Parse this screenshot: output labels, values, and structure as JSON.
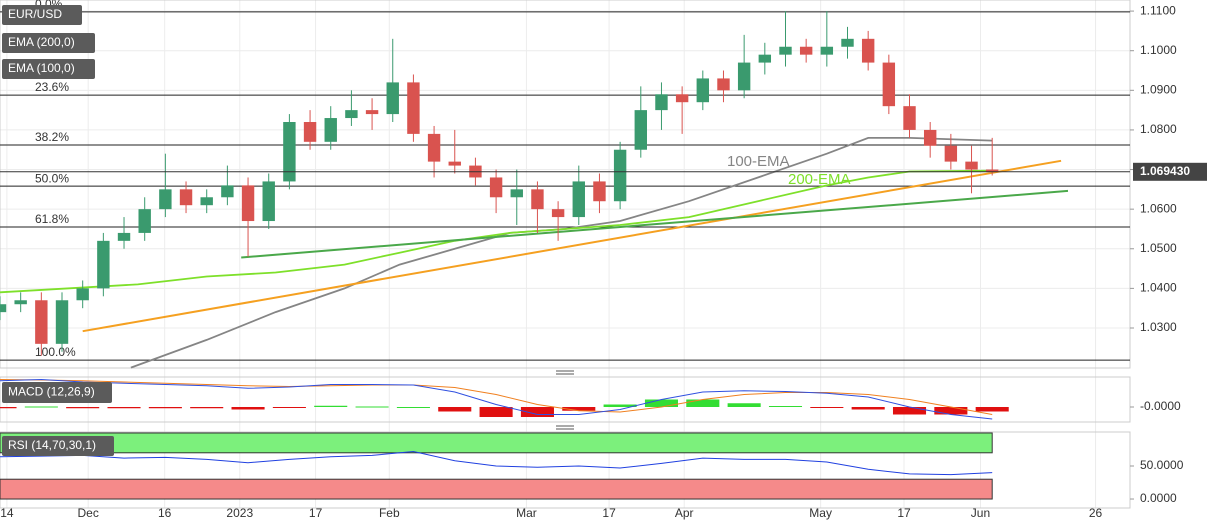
{
  "chart_data": [
    {
      "type": "candlestick",
      "legend": [
        "EUR/USD",
        "EMA (200,0)",
        "EMA (100,0)"
      ],
      "x": [
        0,
        3,
        6,
        9,
        12,
        15,
        18,
        21,
        24,
        27,
        30,
        33,
        36,
        39,
        42,
        45,
        48,
        51,
        54,
        57,
        60,
        63,
        66,
        69,
        72,
        75,
        78,
        81,
        84,
        87,
        90,
        93,
        96,
        99,
        102,
        105,
        108,
        111,
        114,
        117,
        120,
        123,
        126,
        129,
        132,
        135,
        138,
        141,
        144
      ],
      "open": [
        1.034,
        1.036,
        1.037,
        1.026,
        1.037,
        1.04,
        1.052,
        1.054,
        1.06,
        1.065,
        1.061,
        1.063,
        1.066,
        1.057,
        1.067,
        1.082,
        1.077,
        1.083,
        1.085,
        1.084,
        1.092,
        1.079,
        1.072,
        1.071,
        1.068,
        1.063,
        1.065,
        1.06,
        1.058,
        1.067,
        1.062,
        1.075,
        1.085,
        1.089,
        1.087,
        1.093,
        1.09,
        1.097,
        1.099,
        1.101,
        1.099,
        1.101,
        1.103,
        1.097,
        1.086,
        1.08,
        1.076,
        1.072,
        1.07
      ],
      "high": [
        1.038,
        1.039,
        1.039,
        1.039,
        1.042,
        1.054,
        1.058,
        1.063,
        1.074,
        1.067,
        1.065,
        1.071,
        1.068,
        1.069,
        1.084,
        1.085,
        1.086,
        1.09,
        1.088,
        1.103,
        1.094,
        1.081,
        1.08,
        1.073,
        1.07,
        1.07,
        1.067,
        1.062,
        1.071,
        1.069,
        1.077,
        1.091,
        1.092,
        1.091,
        1.095,
        1.095,
        1.104,
        1.102,
        1.11,
        1.103,
        1.11,
        1.106,
        1.105,
        1.099,
        1.089,
        1.082,
        1.079,
        1.076,
        1.078
      ],
      "low": [
        1.032,
        1.034,
        1.023,
        1.024,
        1.035,
        1.038,
        1.05,
        1.052,
        1.058,
        1.059,
        1.059,
        1.061,
        1.048,
        1.055,
        1.065,
        1.075,
        1.075,
        1.081,
        1.08,
        1.082,
        1.077,
        1.068,
        1.069,
        1.066,
        1.059,
        1.056,
        1.054,
        1.052,
        1.056,
        1.059,
        1.06,
        1.073,
        1.08,
        1.079,
        1.085,
        1.087,
        1.088,
        1.094,
        1.096,
        1.097,
        1.096,
        1.098,
        1.095,
        1.084,
        1.078,
        1.073,
        1.07,
        1.064,
        1.0685
      ],
      "close": [
        1.036,
        1.037,
        1.026,
        1.037,
        1.04,
        1.052,
        1.054,
        1.06,
        1.065,
        1.061,
        1.063,
        1.066,
        1.057,
        1.067,
        1.082,
        1.077,
        1.083,
        1.085,
        1.084,
        1.092,
        1.079,
        1.072,
        1.071,
        1.068,
        1.063,
        1.065,
        1.06,
        1.058,
        1.067,
        1.062,
        1.075,
        1.085,
        1.089,
        1.087,
        1.093,
        1.09,
        1.097,
        1.099,
        1.101,
        1.099,
        1.101,
        1.103,
        1.097,
        1.086,
        1.08,
        1.076,
        1.072,
        1.07,
        1.0694
      ],
      "up_color": "#3a9a6e",
      "down_color": "#d9534f",
      "series": [
        {
          "name": "100-EMA",
          "color": "#858585",
          "x": [
            19,
            30,
            40,
            50,
            58,
            66,
            74,
            82,
            90,
            100,
            110,
            120,
            126,
            132,
            144
          ],
          "values": [
            1.02,
            1.027,
            1.034,
            1.04,
            1.046,
            1.05,
            1.054,
            1.055,
            1.057,
            1.062,
            1.068,
            1.074,
            1.078,
            1.078,
            1.0773
          ]
        },
        {
          "name": "200-EMA",
          "color": "#7ee02a",
          "x": [
            0,
            20,
            30,
            40,
            50,
            58,
            66,
            74,
            82,
            90,
            100,
            110,
            120,
            126,
            132,
            144
          ],
          "values": [
            1.039,
            1.041,
            1.043,
            1.044,
            1.046,
            1.049,
            1.052,
            1.054,
            1.055,
            1.056,
            1.058,
            1.062,
            1.066,
            1.068,
            1.0695,
            1.0697
          ]
        }
      ],
      "trendlines": [
        {
          "color": "#f5a020",
          "x": [
            12,
            154
          ],
          "values": [
            1.0292,
            1.0722
          ]
        },
        {
          "color": "#4aa84a",
          "x": [
            35,
            155
          ],
          "values": [
            1.0478,
            1.0646
          ]
        }
      ],
      "fib_levels": [
        {
          "value": 1.1098,
          "label": "0.0%"
        },
        {
          "value": 1.0888,
          "label": "23.6%"
        },
        {
          "value": 1.0762,
          "label": "38.2%"
        },
        {
          "value": 1.0658,
          "label": "50.0%"
        },
        {
          "value": 1.0555,
          "label": "61.8%"
        },
        {
          "value": 1.0219,
          "label": "100.0%"
        }
      ],
      "last_price": {
        "value": 1.06943,
        "label": "1.069430"
      },
      "xlim": [
        0,
        164
      ],
      "ylim": [
        1.0199,
        1.1128
      ],
      "yticks": [
        {
          "value": 1.11,
          "label": "1.1100"
        },
        {
          "value": 1.1,
          "label": "1.1000"
        },
        {
          "value": 1.09,
          "label": "1.0900"
        },
        {
          "value": 1.08,
          "label": "1.0800"
        },
        {
          "value": 1.07,
          "label": "1.0700"
        },
        {
          "value": 1.06,
          "label": "1.0600"
        },
        {
          "value": 1.05,
          "label": "1.0500"
        },
        {
          "value": 1.04,
          "label": "1.0400"
        },
        {
          "value": 1.03,
          "label": "1.0300"
        }
      ]
    },
    {
      "type": "macd",
      "label": "MACD (12,26,9)",
      "x": [
        0,
        6,
        12,
        18,
        24,
        30,
        36,
        42,
        48,
        54,
        60,
        66,
        72,
        78,
        84,
        90,
        96,
        102,
        108,
        114,
        120,
        126,
        132,
        138,
        144
      ],
      "macd": {
        "color": "#3050e0",
        "values": [
          0.0105,
          0.011,
          0.01,
          0.0095,
          0.009,
          0.0085,
          0.0075,
          0.008,
          0.009,
          0.009,
          0.0088,
          0.006,
          0.001,
          -0.003,
          -0.003,
          -0.001,
          0.003,
          0.006,
          0.0065,
          0.0062,
          0.0055,
          0.004,
          0.0,
          -0.003,
          -0.0048
        ]
      },
      "signal": {
        "color": "#f08020",
        "values": [
          0.011,
          0.0108,
          0.0105,
          0.01,
          0.0095,
          0.009,
          0.0085,
          0.0082,
          0.0085,
          0.0088,
          0.0088,
          0.0078,
          0.005,
          0.001,
          -0.0015,
          -0.002,
          0.0,
          0.003,
          0.005,
          0.0058,
          0.0058,
          0.005,
          0.003,
          0.0,
          -0.003
        ]
      },
      "histogram": {
        "up_color": "#33dd33",
        "down_color": "#e01010",
        "values": [
          -0.0005,
          0.0002,
          -0.0005,
          -0.0005,
          -0.0005,
          -0.0005,
          -0.001,
          -0.0002,
          0.0005,
          0.0002,
          0.0,
          -0.0018,
          -0.004,
          -0.004,
          -0.0015,
          0.001,
          0.003,
          0.003,
          0.0015,
          0.0004,
          -0.0003,
          -0.001,
          -0.003,
          -0.003,
          -0.0018
        ]
      },
      "xlim": [
        0,
        164
      ],
      "ylim": [
        -0.006,
        0.012
      ],
      "yticks": [
        {
          "value": 0,
          "label": "-0.0000"
        }
      ]
    },
    {
      "type": "rsi",
      "label": "RSI (14,70,30,1)",
      "x": [
        0,
        6,
        12,
        18,
        24,
        30,
        36,
        42,
        48,
        54,
        60,
        66,
        72,
        78,
        84,
        90,
        96,
        102,
        108,
        114,
        120,
        126,
        132,
        138,
        144
      ],
      "values": [
        64,
        65,
        66,
        62,
        63,
        60,
        55,
        60,
        64,
        66,
        72,
        58,
        50,
        48,
        50,
        47,
        54,
        62,
        60,
        60,
        56,
        45,
        38,
        37,
        40
      ],
      "color": "#2040e0",
      "upper_zone": [
        70,
        100
      ],
      "upper_color": "#7cf07c",
      "lower_zone": [
        0,
        30
      ],
      "lower_color": "#f58a8a",
      "xlim": [
        0,
        164
      ],
      "ylim": [
        -13.6,
        101.5
      ],
      "yticks": [
        {
          "value": 50,
          "label": "50.0000"
        },
        {
          "value": 0,
          "label": "0.0000"
        }
      ],
      "xticks": [
        {
          "value": 1,
          "label": "14"
        },
        {
          "value": 12.8,
          "label": "Dec"
        },
        {
          "value": 23.9,
          "label": "16"
        },
        {
          "value": 34.8,
          "label": "2023"
        },
        {
          "value": 45.8,
          "label": "17"
        },
        {
          "value": 56.5,
          "label": "Feb"
        },
        {
          "value": 76.4,
          "label": "Mar"
        },
        {
          "value": 88.4,
          "label": "17"
        },
        {
          "value": 99.3,
          "label": "Apr"
        },
        {
          "value": 119.1,
          "label": "May"
        },
        {
          "value": 131.2,
          "label": "17"
        },
        {
          "value": 142.3,
          "label": "Jun"
        },
        {
          "value": 159,
          "label": "26"
        }
      ]
    }
  ]
}
